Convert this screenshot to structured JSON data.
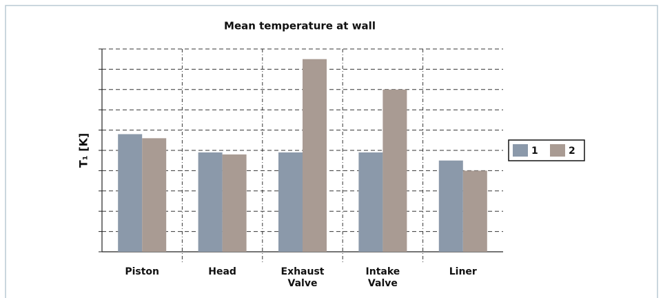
{
  "chart_data": {
    "type": "bar",
    "title": "Mean temperature at wall",
    "ylabel": "T₁ [K]",
    "categories": [
      "Piston",
      "Head",
      "Exhaust Valve",
      "Intake Valve",
      "Liner"
    ],
    "series": [
      {
        "name": "1",
        "color": "#8b99aa",
        "values": [
          5.8,
          4.9,
          4.9,
          4.9,
          4.5
        ]
      },
      {
        "name": "2",
        "color": "#a99b93",
        "values": [
          5.6,
          4.8,
          9.5,
          8.0,
          4.0
        ]
      }
    ],
    "ylim": [
      0,
      10
    ],
    "yticks": [
      0,
      1,
      2,
      3,
      4,
      5,
      6,
      7,
      8,
      9,
      10
    ],
    "grid": true,
    "legend": "right"
  }
}
